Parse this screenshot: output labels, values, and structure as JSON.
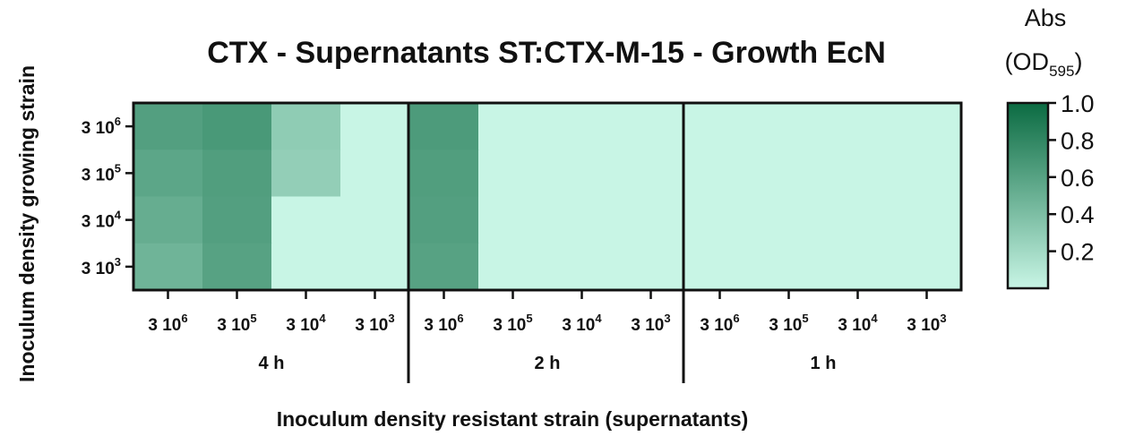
{
  "chart_data": {
    "type": "heatmap",
    "title": "CTX - Supernatants ST:CTX-M-15 -  Growth EcN",
    "xlabel": "Inoculum density resistant strain (supernatants)",
    "ylabel": "Inoculum density growing strain",
    "groups": [
      "4 h",
      "2 h",
      "1 h"
    ],
    "x_tick_base": "3 10",
    "x_tick_exponents": [
      "6",
      "5",
      "4",
      "3"
    ],
    "y_tick_base": "3 10",
    "y_tick_exponents": [
      "6",
      "5",
      "4",
      "3"
    ],
    "colorbar": {
      "label_main": "Abs",
      "label_paren_open": "(OD",
      "label_sub": "595",
      "label_paren_close": ")",
      "ticks": [
        "1.0",
        "0.8",
        "0.6",
        "0.4",
        "0.2"
      ],
      "range": [
        0.0,
        1.0
      ],
      "color_low": "#c8f5e5",
      "color_high": "#0b6b42"
    },
    "values": [
      [
        0.62,
        0.67,
        0.3,
        0.0,
        0.65,
        0.0,
        0.0,
        0.0,
        0.0,
        0.0,
        0.0,
        0.0
      ],
      [
        0.57,
        0.63,
        0.28,
        0.0,
        0.63,
        0.0,
        0.0,
        0.0,
        0.0,
        0.0,
        0.0,
        0.0
      ],
      [
        0.52,
        0.62,
        0.0,
        0.0,
        0.62,
        0.0,
        0.0,
        0.0,
        0.0,
        0.0,
        0.0,
        0.0
      ],
      [
        0.47,
        0.6,
        0.0,
        0.0,
        0.6,
        0.0,
        0.0,
        0.0,
        0.0,
        0.0,
        0.0,
        0.0
      ]
    ]
  }
}
